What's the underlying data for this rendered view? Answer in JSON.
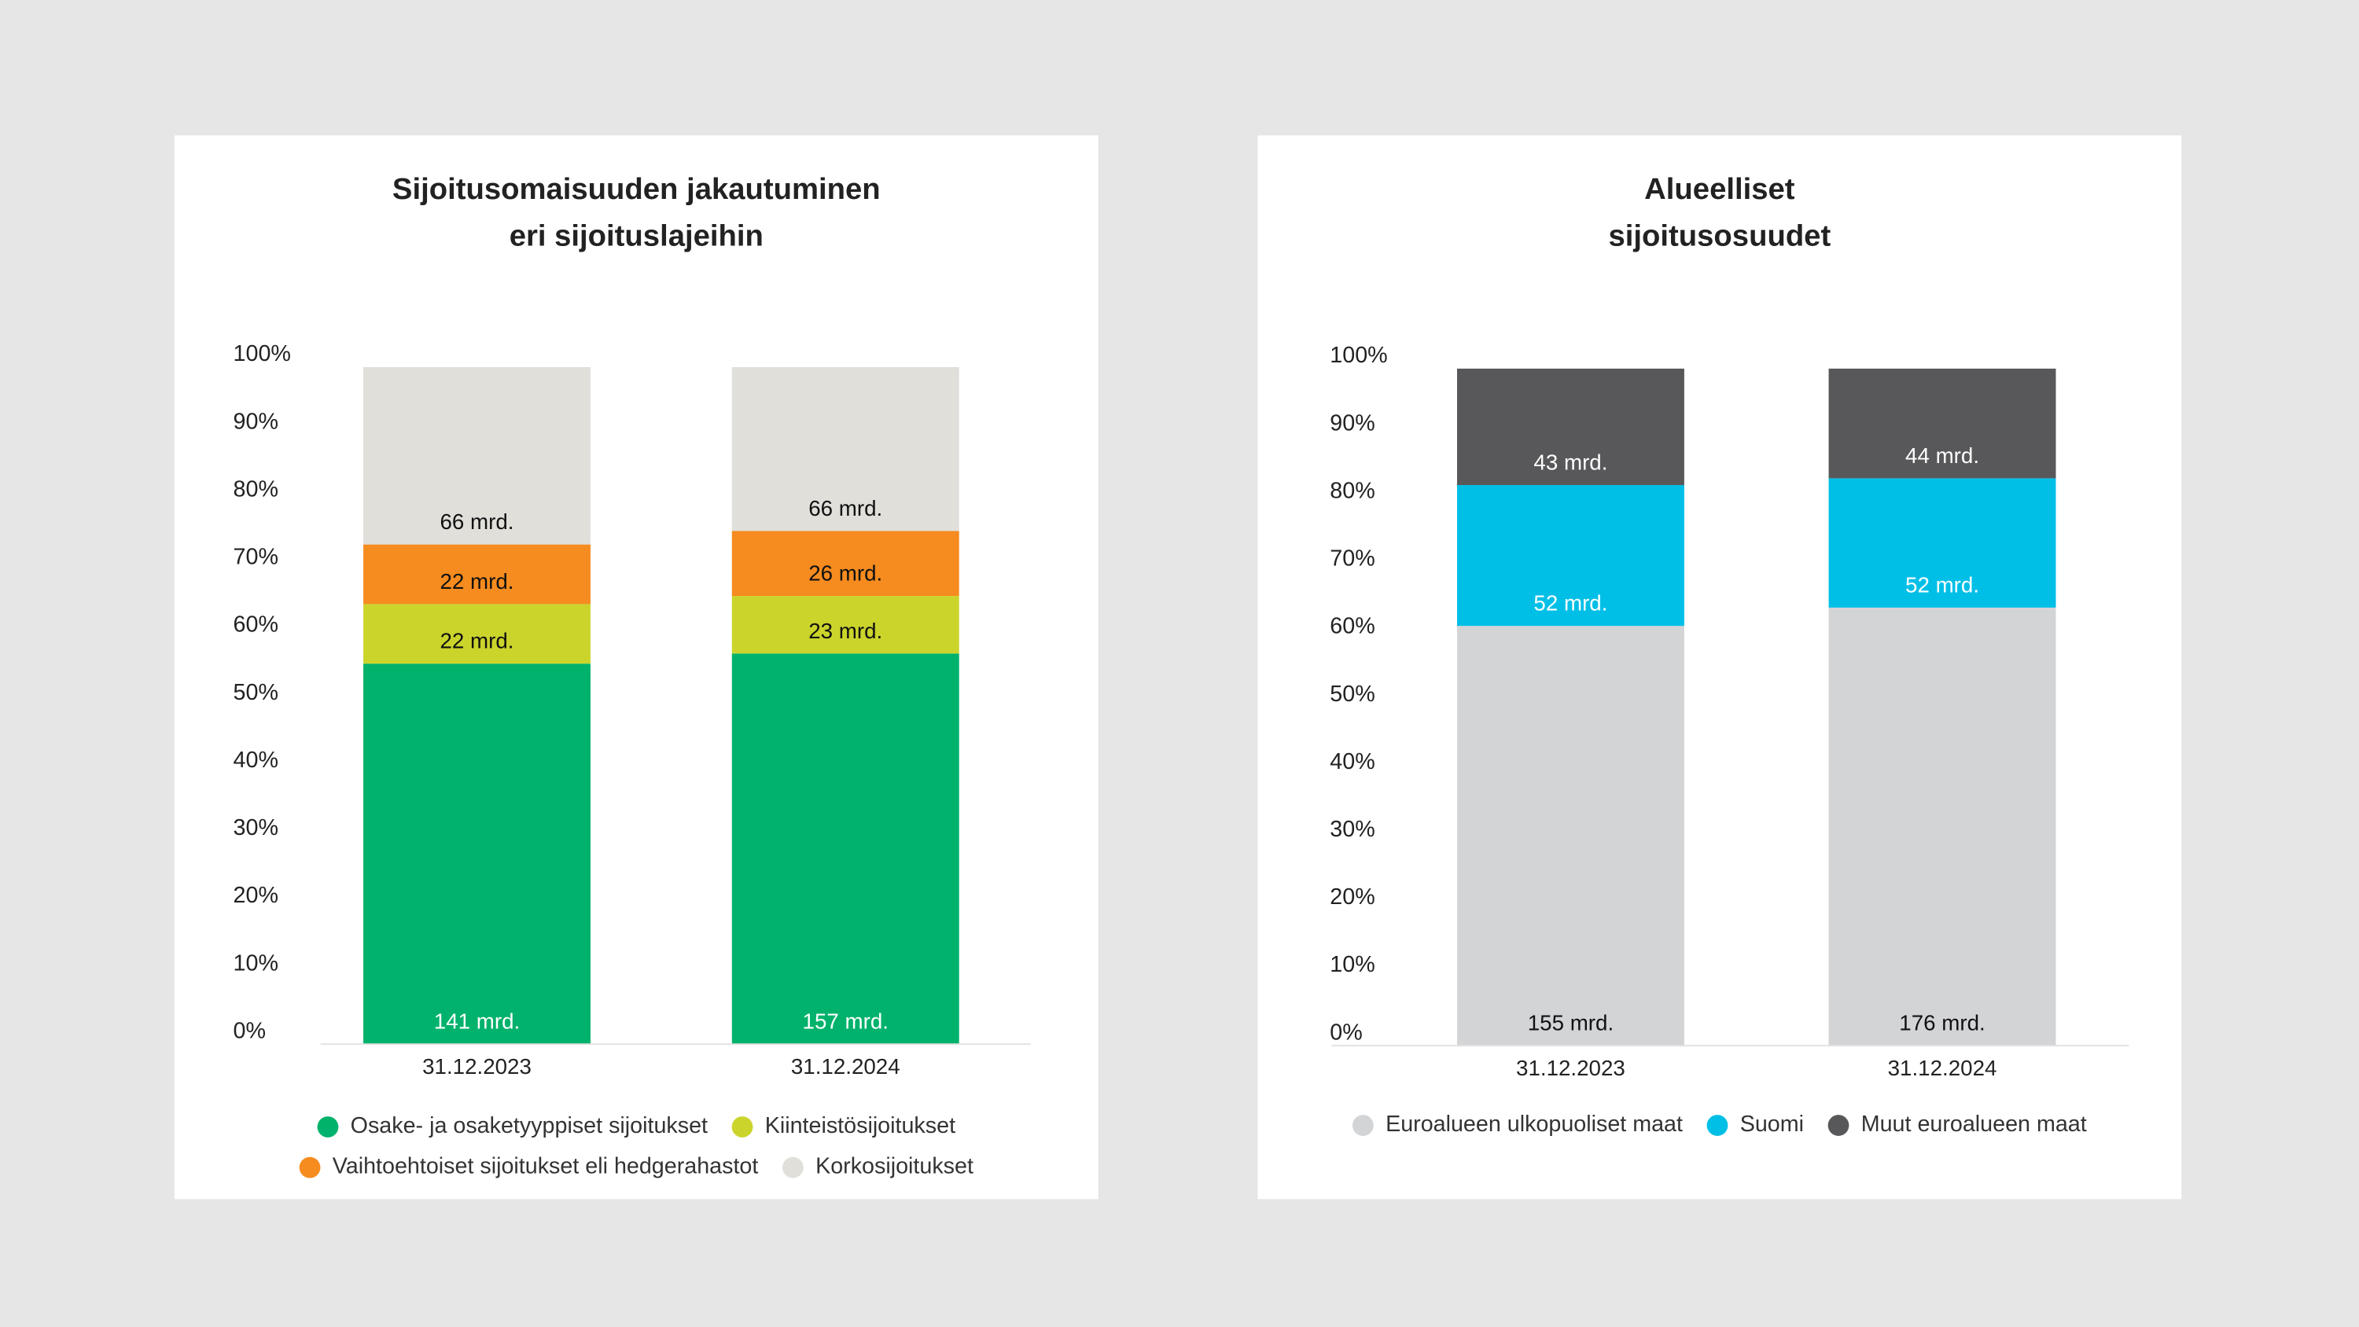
{
  "chart_data": [
    {
      "type": "bar",
      "stacked": true,
      "title": [
        "Sijoitusomaisuuden jakautuminen",
        "eri sijoituslajeihin"
      ],
      "categories": [
        "31.12.2023",
        "31.12.2024"
      ],
      "series": [
        {
          "name": "Osake- ja osaketyyppiset sijoitukset",
          "color": "#00b26b",
          "values": [
            56.2,
            57.7
          ],
          "labels": [
            "141 mrd.",
            "157 mrd."
          ]
        },
        {
          "name": "Kiinteistösijoitukset",
          "color": "#cbd42b",
          "values": [
            8.8,
            8.5
          ],
          "labels": [
            "22 mrd.",
            "23 mrd."
          ]
        },
        {
          "name": "Vaihtoehtoiset sijoitukset eli hedgerahastot",
          "color": "#f68b1f",
          "values": [
            8.8,
            9.6
          ],
          "labels": [
            "22 mrd.",
            "26 mrd."
          ]
        },
        {
          "name": "Korkosijoitukset",
          "color": "#e0dfda",
          "values": [
            26.2,
            24.2
          ],
          "labels": [
            "66 mrd.",
            "66 mrd."
          ]
        }
      ],
      "ylim": [
        0,
        100
      ],
      "yticks": [
        {
          "value": 0,
          "label": "0%"
        },
        {
          "value": 10,
          "label": "10%"
        },
        {
          "value": 20,
          "label": "20%"
        },
        {
          "value": 30,
          "label": "30%"
        },
        {
          "value": 40,
          "label": "40%"
        },
        {
          "value": 50,
          "label": "50%"
        },
        {
          "value": 60,
          "label": "60%"
        },
        {
          "value": 70,
          "label": "70%"
        },
        {
          "value": 80,
          "label": "80%"
        },
        {
          "value": 90,
          "label": "90%"
        },
        {
          "value": 100,
          "label": "100%"
        }
      ],
      "legend_columns": 2
    },
    {
      "type": "bar",
      "stacked": true,
      "title": [
        "Alueelliset",
        "sijoitusosuudet"
      ],
      "categories": [
        "31.12.2023",
        "31.12.2024"
      ],
      "series": [
        {
          "name": "Euroalueen ulkopuoliset maat",
          "color": "#d3d4d6",
          "values": [
            62.0,
            64.7
          ],
          "labels": [
            "155 mrd.",
            "176 mrd."
          ]
        },
        {
          "name": "Suomi",
          "color": "#00bfe7",
          "values": [
            20.8,
            19.1
          ],
          "labels": [
            "52 mrd.",
            "52 mrd."
          ]
        },
        {
          "name": "Muut euroalueen maat",
          "color": "#58585a",
          "values": [
            17.2,
            16.2
          ],
          "labels": [
            "43 mrd.",
            "44 mrd."
          ]
        }
      ],
      "ylim": [
        0,
        100
      ],
      "yticks": [
        {
          "value": 0,
          "label": "0%"
        },
        {
          "value": 10,
          "label": "10%"
        },
        {
          "value": 20,
          "label": "20%"
        },
        {
          "value": 30,
          "label": "30%"
        },
        {
          "value": 40,
          "label": "40%"
        },
        {
          "value": 50,
          "label": "50%"
        },
        {
          "value": 60,
          "label": "60%"
        },
        {
          "value": 70,
          "label": "70%"
        },
        {
          "value": 80,
          "label": "80%"
        },
        {
          "value": 90,
          "label": "90%"
        },
        {
          "value": 100,
          "label": "100%"
        }
      ],
      "legend_columns": 3
    }
  ]
}
